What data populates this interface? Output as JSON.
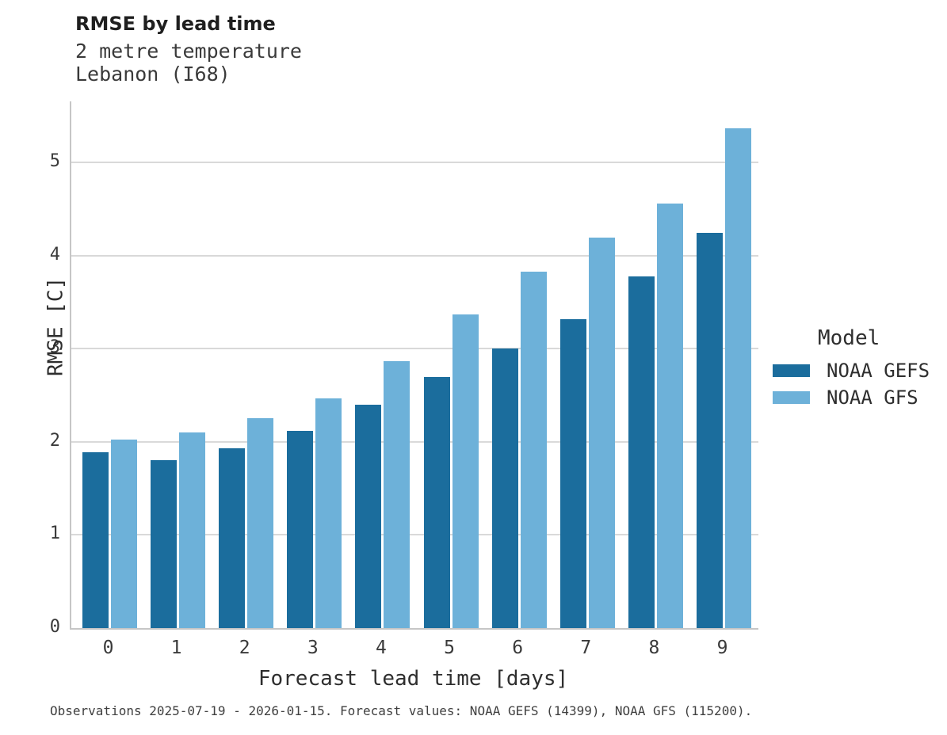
{
  "header": {
    "title": "RMSE by lead time",
    "subtitle_line1": "2 metre temperature",
    "subtitle_line2": "Lebanon (I68)"
  },
  "legend": {
    "title": "Model",
    "items": [
      {
        "label": "NOAA GEFS",
        "color": "#1b6d9d"
      },
      {
        "label": "NOAA GFS",
        "color": "#6db1d9"
      }
    ]
  },
  "caption": "Observations 2025-07-19 - 2026-01-15. Forecast values: NOAA GEFS (14399), NOAA GFS (115200).",
  "chart_data": {
    "type": "bar",
    "title": "RMSE by lead time",
    "subtitle": [
      "2 metre temperature",
      "Lebanon (I68)"
    ],
    "categories": [
      "0",
      "1",
      "2",
      "3",
      "4",
      "5",
      "6",
      "7",
      "8",
      "9"
    ],
    "series": [
      {
        "name": "NOAA GEFS",
        "color": "#1b6d9d",
        "values": [
          1.89,
          1.8,
          1.93,
          2.12,
          2.4,
          2.7,
          3.0,
          3.32,
          3.78,
          4.24
        ]
      },
      {
        "name": "NOAA GFS",
        "color": "#6db1d9",
        "values": [
          2.02,
          2.1,
          2.25,
          2.47,
          2.87,
          3.37,
          3.83,
          4.19,
          4.56,
          5.37
        ]
      }
    ],
    "xlabel": "Forecast lead time [days]",
    "ylabel": "RMSE [C]",
    "ylim": [
      0,
      5.655
    ],
    "yticks": [
      0,
      1,
      2,
      3,
      4,
      5
    ],
    "grid": true,
    "grid_color": "#d9d9d9",
    "legend_title": "Model",
    "legend_position": "right"
  }
}
